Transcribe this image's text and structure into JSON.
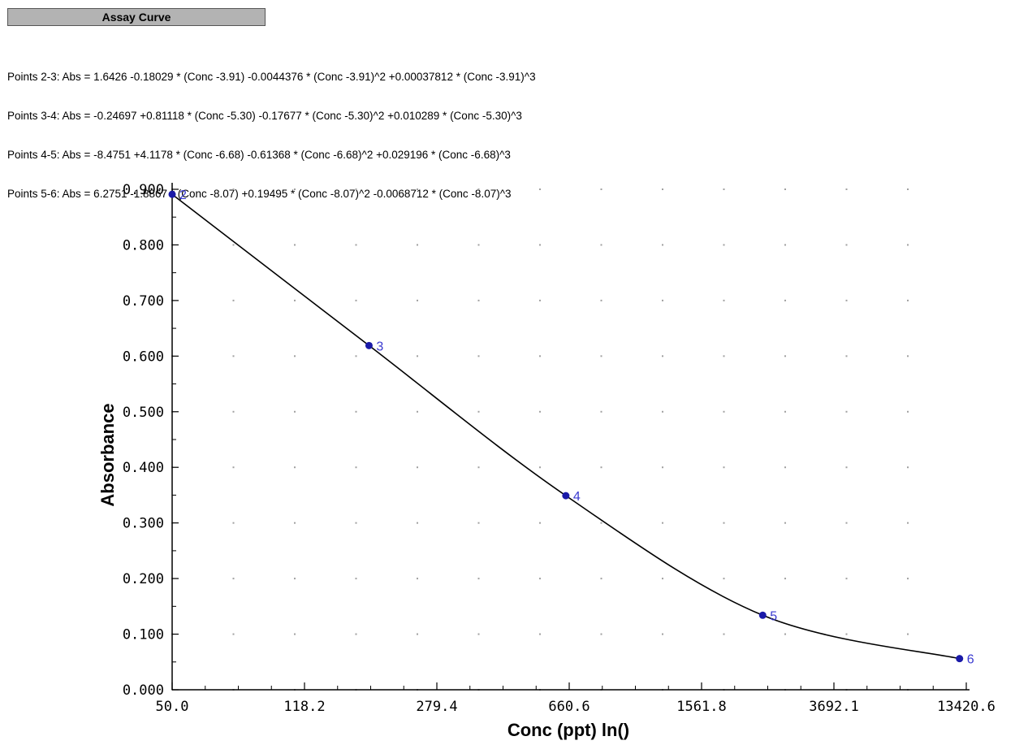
{
  "header": {
    "title": "Assay Curve"
  },
  "equations": [
    "Points 2-3: Abs = 1.6426 -0.18029 * (Conc -3.91) -0.0044376 * (Conc -3.91)^2 +0.00037812 * (Conc -3.91)^3",
    "Points 3-4: Abs = -0.24697 +0.81118 * (Conc -5.30) -0.17677 * (Conc -5.30)^2 +0.010289 * (Conc -5.30)^3",
    "Points 4-5: Abs = -8.4751 +4.1178 * (Conc -6.68) -0.61368 * (Conc -6.68)^2 +0.029196 * (Conc -6.68)^3",
    "Points 5-6: Abs = 6.2751 -1.8867 * (Conc -8.07) +0.19495 * (Conc -8.07)^2 -0.0068712 * (Conc -8.07)^3"
  ],
  "colors": {
    "point": "#1a1aa8",
    "point_label": "#3a3ad0",
    "curve": "#000000",
    "grid_dot": "#a0a0a0",
    "title_bg": "#b3b3b3"
  },
  "chart_data": {
    "type": "line",
    "xlabel": "Conc (ppt) ln()",
    "ylabel": "Absorbance",
    "x_scale": "log",
    "xlim": [
      50.0,
      13420.6
    ],
    "ylim": [
      0.0,
      0.9
    ],
    "x_ticks": [
      "50.0",
      "118.2",
      "279.4",
      "660.6",
      "1561.8",
      "3692.1",
      "13420.6"
    ],
    "y_ticks": [
      "0.000",
      "0.100",
      "0.200",
      "0.300",
      "0.400",
      "0.500",
      "0.600",
      "0.700",
      "0.800",
      "0.900"
    ],
    "grid": "dotted",
    "series": [
      {
        "x": [
          50.0,
          200.0,
          800.0,
          3200.0,
          12800.0
        ],
        "y": [
          0.891,
          0.619,
          0.349,
          0.134,
          0.056
        ],
        "point_labels": [
          "2",
          "3",
          "4",
          "5",
          "6"
        ]
      }
    ]
  }
}
